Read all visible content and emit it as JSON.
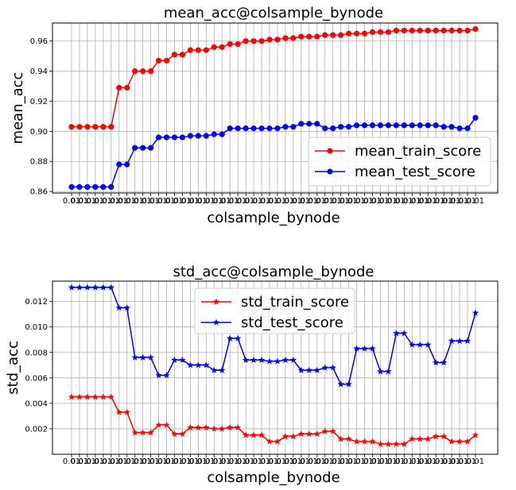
{
  "chart_data": [
    {
      "type": "line",
      "title": "mean_acc@colsample_bynode",
      "xlabel": "colsample_bynode",
      "ylabel": "mean_acc",
      "x_tick_labels_note": "0.01",
      "ylim": [
        0.859,
        0.972
      ],
      "yticks": [
        "0.86",
        "0.88",
        "0.90",
        "0.92",
        "0.94",
        "0.96"
      ],
      "grid": true,
      "legend_position": "lower-right",
      "series": [
        {
          "name": "mean_train_score",
          "color": "#ff0000",
          "marker": "circle",
          "values": [
            0.903,
            0.903,
            0.903,
            0.903,
            0.903,
            0.903,
            0.929,
            0.929,
            0.94,
            0.94,
            0.94,
            0.947,
            0.947,
            0.951,
            0.951,
            0.954,
            0.954,
            0.954,
            0.956,
            0.956,
            0.958,
            0.958,
            0.96,
            0.96,
            0.96,
            0.961,
            0.961,
            0.962,
            0.962,
            0.963,
            0.963,
            0.963,
            0.964,
            0.964,
            0.964,
            0.965,
            0.965,
            0.965,
            0.966,
            0.966,
            0.966,
            0.967,
            0.967,
            0.967,
            0.967,
            0.967,
            0.967,
            0.967,
            0.967,
            0.967,
            0.967,
            0.968
          ]
        },
        {
          "name": "mean_test_score",
          "color": "#0000ff",
          "marker": "circle",
          "values": [
            0.863,
            0.863,
            0.863,
            0.863,
            0.863,
            0.863,
            0.878,
            0.878,
            0.889,
            0.889,
            0.889,
            0.896,
            0.896,
            0.896,
            0.896,
            0.897,
            0.897,
            0.897,
            0.898,
            0.898,
            0.902,
            0.902,
            0.902,
            0.902,
            0.902,
            0.902,
            0.902,
            0.903,
            0.903,
            0.905,
            0.905,
            0.905,
            0.902,
            0.902,
            0.903,
            0.903,
            0.904,
            0.904,
            0.904,
            0.904,
            0.904,
            0.904,
            0.904,
            0.904,
            0.904,
            0.904,
            0.904,
            0.903,
            0.903,
            0.902,
            0.902,
            0.909
          ]
        }
      ]
    },
    {
      "type": "line",
      "title": "std_acc@colsample_bynode",
      "xlabel": "colsample_bynode",
      "ylabel": "std_acc",
      "x_tick_labels_note": "0.01",
      "ylim": [
        0.0,
        0.0136
      ],
      "yticks": [
        "0.002",
        "0.004",
        "0.006",
        "0.008",
        "0.010",
        "0.012"
      ],
      "grid": true,
      "legend_position": "upper-center",
      "series": [
        {
          "name": "std_train_score",
          "color": "#ff0000",
          "marker": "star",
          "values": [
            0.0045,
            0.0045,
            0.0045,
            0.0045,
            0.0045,
            0.0045,
            0.0033,
            0.0033,
            0.0017,
            0.0017,
            0.0017,
            0.0023,
            0.0023,
            0.0016,
            0.0016,
            0.0021,
            0.0021,
            0.0021,
            0.002,
            0.002,
            0.0021,
            0.0021,
            0.0015,
            0.0015,
            0.0015,
            0.001,
            0.001,
            0.0014,
            0.0014,
            0.0016,
            0.0016,
            0.0016,
            0.0018,
            0.0018,
            0.0012,
            0.0012,
            0.001,
            0.001,
            0.001,
            0.0008,
            0.0008,
            0.0008,
            0.0008,
            0.0012,
            0.0012,
            0.0012,
            0.0014,
            0.0014,
            0.001,
            0.001,
            0.001,
            0.0015
          ]
        },
        {
          "name": "std_test_score",
          "color": "#0000ff",
          "marker": "star",
          "values": [
            0.0131,
            0.0131,
            0.0131,
            0.0131,
            0.0131,
            0.0131,
            0.0115,
            0.0115,
            0.0076,
            0.0076,
            0.0076,
            0.0062,
            0.0062,
            0.0074,
            0.0074,
            0.007,
            0.007,
            0.007,
            0.0066,
            0.0066,
            0.0091,
            0.0091,
            0.0074,
            0.0074,
            0.0074,
            0.0073,
            0.0073,
            0.0074,
            0.0074,
            0.0066,
            0.0066,
            0.0066,
            0.0068,
            0.0068,
            0.0055,
            0.0055,
            0.0083,
            0.0083,
            0.0083,
            0.0065,
            0.0065,
            0.0095,
            0.0095,
            0.0086,
            0.0086,
            0.0086,
            0.0072,
            0.0072,
            0.0089,
            0.0089,
            0.0089,
            0.0111
          ]
        }
      ]
    }
  ]
}
